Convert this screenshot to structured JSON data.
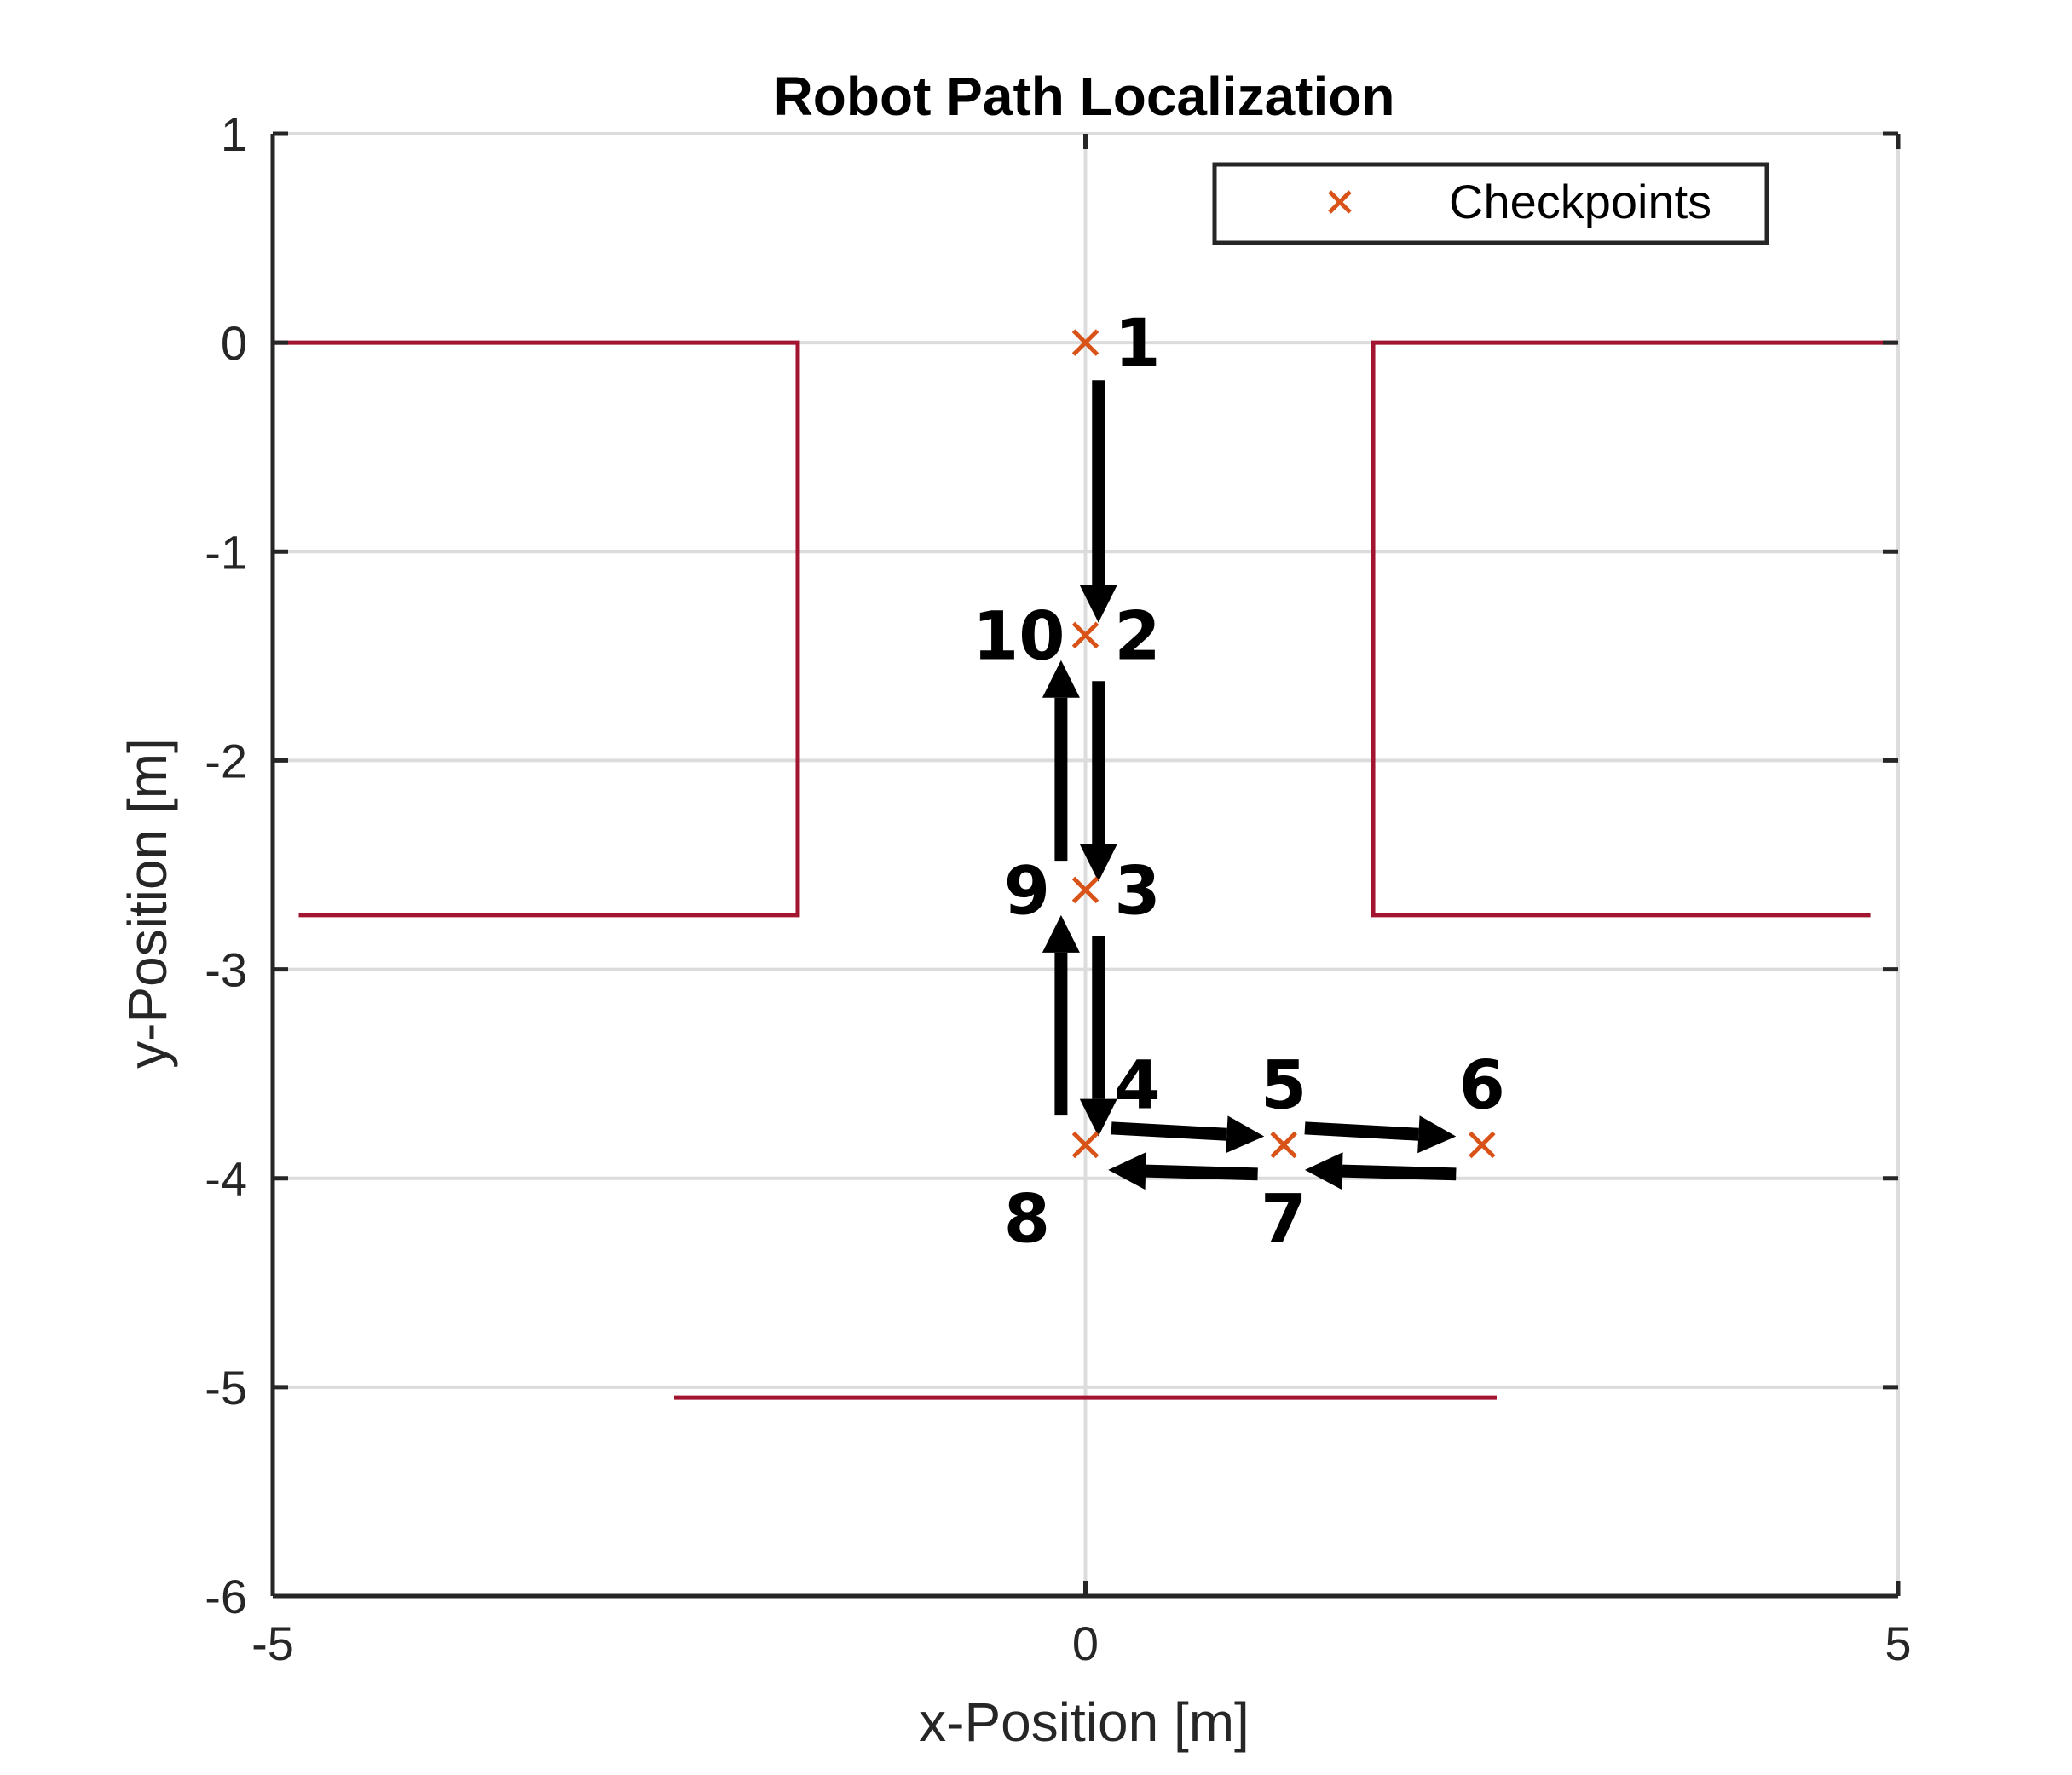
{
  "chart_data": {
    "type": "line",
    "title": "Robot Path Localization",
    "xlabel": "x-Position [m]",
    "ylabel": "y-Position [m]",
    "xlim": [
      -5,
      5
    ],
    "ylim": [
      -6,
      1
    ],
    "xticks": [
      "-5",
      "0",
      "5"
    ],
    "yticks": [
      "1",
      "0",
      "-1",
      "-2",
      "-3",
      "-4",
      "-5",
      "-6"
    ],
    "grid": true,
    "legend": {
      "position": "top-right",
      "entries": [
        "Checkpoints"
      ]
    },
    "colors": {
      "walls": "#a2142f",
      "checkpoints": "#d95319",
      "arrows": "#000000"
    },
    "walls": [
      {
        "x": [
          -5,
          -1.77,
          -1.77,
          -4.84
        ],
        "y": [
          0,
          0,
          -2.74,
          -2.74
        ]
      },
      {
        "x": [
          4.99,
          1.77,
          1.77,
          4.83
        ],
        "y": [
          0,
          0,
          -2.74,
          -2.74
        ]
      },
      {
        "x": [
          -2.53,
          2.53
        ],
        "y": [
          -5.05,
          -5.05
        ]
      }
    ],
    "series": [
      {
        "name": "Checkpoints",
        "marker": "x",
        "points": [
          {
            "x": 0,
            "y": 0
          },
          {
            "x": 0,
            "y": -1.4
          },
          {
            "x": 0,
            "y": -2.62
          },
          {
            "x": 0,
            "y": -3.84
          },
          {
            "x": 1.22,
            "y": -3.84
          },
          {
            "x": 2.44,
            "y": -3.84
          }
        ]
      }
    ],
    "checkpoint_labels": [
      {
        "text": "1",
        "x": 0.32,
        "y": 0
      },
      {
        "text": "10",
        "x": -0.41,
        "y": -1.4
      },
      {
        "text": "2",
        "x": 0.32,
        "y": -1.4
      },
      {
        "text": "9",
        "x": -0.36,
        "y": -2.62
      },
      {
        "text": "3",
        "x": 0.32,
        "y": -2.62
      },
      {
        "text": "4",
        "x": 0.32,
        "y": -3.55
      },
      {
        "text": "5",
        "x": 1.22,
        "y": -3.55
      },
      {
        "text": "6",
        "x": 2.44,
        "y": -3.55
      },
      {
        "text": "7",
        "x": 1.22,
        "y": -4.19
      },
      {
        "text": "8",
        "x": -0.36,
        "y": -4.19
      }
    ],
    "path_arrows": [
      {
        "from": [
          0.08,
          -0.18
        ],
        "to": [
          0.08,
          -1.34
        ]
      },
      {
        "from": [
          0.08,
          -1.62
        ],
        "to": [
          0.08,
          -2.58
        ]
      },
      {
        "from": [
          0.08,
          -2.84
        ],
        "to": [
          0.08,
          -3.8
        ]
      },
      {
        "from": [
          0.16,
          -3.76
        ],
        "to": [
          1.1,
          -3.8
        ]
      },
      {
        "from": [
          1.35,
          -3.76
        ],
        "to": [
          2.28,
          -3.8
        ]
      },
      {
        "from": [
          2.28,
          -3.98
        ],
        "to": [
          1.35,
          -3.96
        ]
      },
      {
        "from": [
          1.06,
          -3.98
        ],
        "to": [
          0.14,
          -3.96
        ]
      },
      {
        "from": [
          -0.15,
          -3.7
        ],
        "to": [
          -0.15,
          -2.74
        ]
      },
      {
        "from": [
          -0.15,
          -2.48
        ],
        "to": [
          -0.15,
          -1.52
        ]
      }
    ]
  }
}
